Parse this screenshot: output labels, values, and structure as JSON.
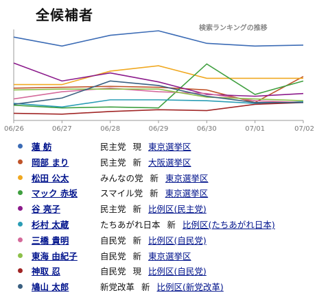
{
  "title": "全候補者",
  "chart_caption": "検索ランキングの推移",
  "chart_data": {
    "type": "line",
    "title": "検索ランキングの推移",
    "x": [
      "06/26",
      "06/27",
      "06/28",
      "06/29",
      "06/30",
      "07/01",
      "07/02"
    ],
    "y_direction": "rank (higher on chart = more searched)",
    "grid": false,
    "legend_placement": "bottom",
    "series": [
      {
        "name": "蓮 舫",
        "color": "#3b6bb5",
        "values": [
          0.93,
          0.83,
          0.95,
          1.0,
          0.86,
          0.83,
          0.84
        ]
      },
      {
        "name": "岡部 まり",
        "color": "#c0542a",
        "values": [
          0.36,
          0.37,
          0.38,
          0.37,
          0.34,
          0.2,
          0.49
        ]
      },
      {
        "name": "松田 公太",
        "color": "#f0a820",
        "values": [
          0.4,
          0.4,
          0.55,
          0.61,
          0.47,
          0.47,
          0.47
        ]
      },
      {
        "name": "マック 赤坂",
        "color": "#3f9f3f",
        "values": [
          0.17,
          0.14,
          0.15,
          0.14,
          0.63,
          0.29,
          0.44
        ]
      },
      {
        "name": "谷 亮子",
        "color": "#8b1a8b",
        "values": [
          0.64,
          0.44,
          0.53,
          0.43,
          0.29,
          0.27,
          0.3
        ]
      },
      {
        "name": "杉村 太蔵",
        "color": "#2a9db5",
        "values": [
          0.19,
          0.15,
          0.23,
          0.23,
          0.22,
          0.19,
          0.21
        ]
      },
      {
        "name": "三橋 貴明",
        "color": "#d46a9a",
        "values": [
          0.24,
          0.32,
          0.36,
          0.32,
          0.3,
          0.22,
          0.2
        ]
      },
      {
        "name": "東海 由紀子",
        "color": "#8dc04a",
        "values": [
          0.34,
          0.35,
          0.35,
          0.35,
          0.26,
          0.24,
          0.22
        ]
      },
      {
        "name": "神取 忍",
        "color": "#a02525",
        "values": [
          0.08,
          0.07,
          0.1,
          0.12,
          0.11,
          0.18,
          0.2
        ]
      },
      {
        "name": "鳩山 太郎",
        "color": "#3a5f80",
        "values": [
          0.18,
          0.25,
          0.44,
          0.39,
          0.27,
          0.2,
          0.2
        ]
      }
    ]
  },
  "candidates": [
    {
      "name": "蓮 舫",
      "party": "民主党",
      "status": "現",
      "district": "東京選挙区",
      "color": "#3b6bb5"
    },
    {
      "name": "岡部 まり",
      "party": "民主党",
      "status": "新",
      "district": "大阪選挙区",
      "color": "#c0542a"
    },
    {
      "name": "松田 公太",
      "party": "みんなの党",
      "status": "新",
      "district": "東京選挙区",
      "color": "#f0a820"
    },
    {
      "name": "マック 赤坂",
      "party": "スマイル党",
      "status": "新",
      "district": "東京選挙区",
      "color": "#3f9f3f"
    },
    {
      "name": "谷 亮子",
      "party": "民主党",
      "status": "新",
      "district": "比例区(民主党)",
      "color": "#8b1a8b"
    },
    {
      "name": "杉村 太蔵",
      "party": "たちあがれ日本",
      "status": "新",
      "district": "比例区(たちあがれ日本)",
      "color": "#2a9db5"
    },
    {
      "name": "三橋 貴明",
      "party": "自民党",
      "status": "新",
      "district": "比例区(自民党)",
      "color": "#d46a9a"
    },
    {
      "name": "東海 由紀子",
      "party": "自民党",
      "status": "新",
      "district": "東京選挙区",
      "color": "#8dc04a"
    },
    {
      "name": "神取 忍",
      "party": "自民党",
      "status": "現",
      "district": "比例区(自民党)",
      "color": "#a02525"
    },
    {
      "name": "鳩山 太郎",
      "party": "新党改革",
      "status": "新",
      "district": "比例区(新党改革)",
      "color": "#3a5f80"
    }
  ]
}
